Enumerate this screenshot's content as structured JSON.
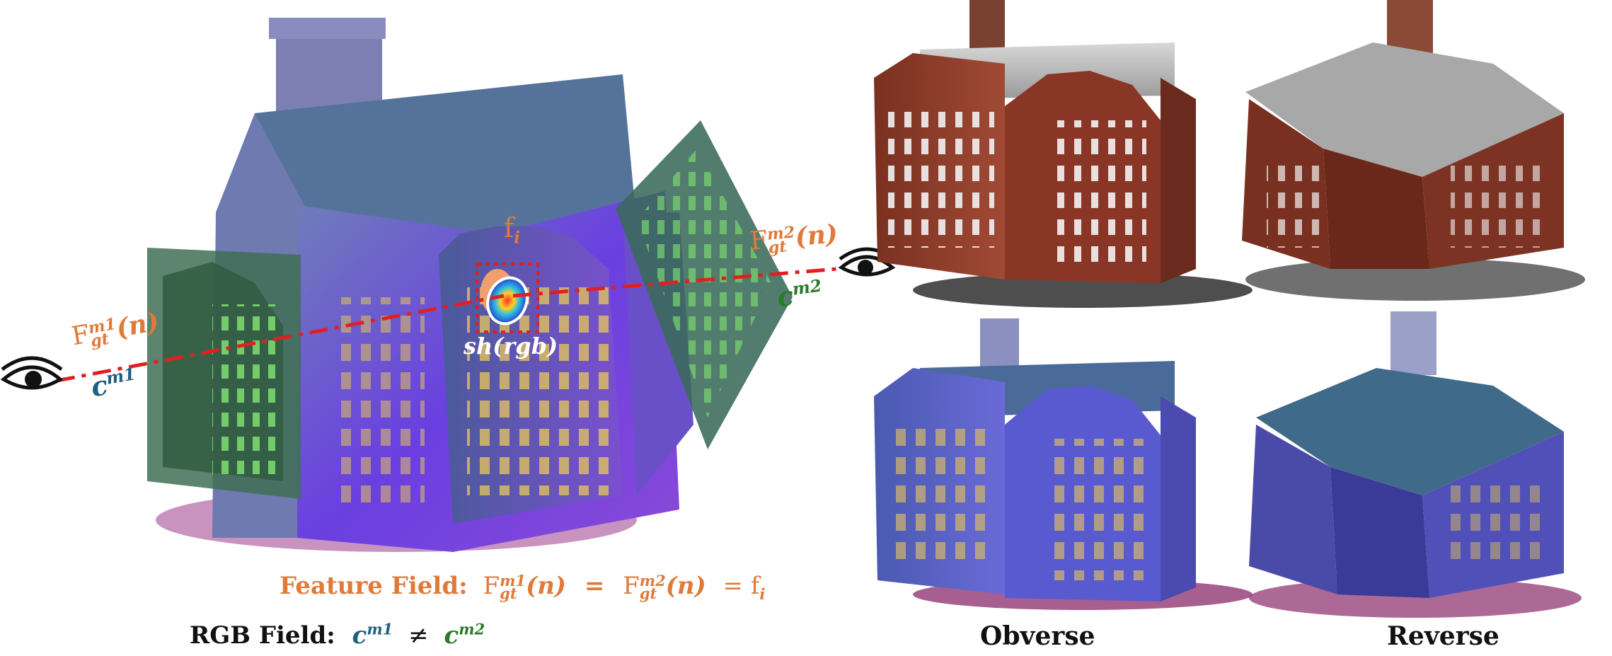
{
  "figure": {
    "left_panel": {
      "labels": {
        "f_i": "f",
        "f_i_sub": "i",
        "sh_rgb": "sh(rgb)",
        "F_gt_m1": "F",
        "F_gt_m1_sup": "m1",
        "F_gt_m1_sub": "gt",
        "F_gt_m1_arg": "(n)",
        "F_gt_m2": "F",
        "F_gt_m2_sup": "m2",
        "F_gt_m2_sub": "gt",
        "F_gt_m2_arg": "(n)",
        "c_m1": "c",
        "c_m1_sup": "m1",
        "c_m2": "c",
        "c_m2_sup": "m2"
      },
      "equations": {
        "feature_field_prefix": "Feature Field:",
        "feature_F1": "F",
        "feature_F1_sup": "m1",
        "feature_F1_sub": "gt",
        "feature_F1_arg": "(n)",
        "equals1": "=",
        "feature_F2": "F",
        "feature_F2_sup": "m2",
        "feature_F2_sub": "gt",
        "feature_F2_arg": "(n)",
        "equals2": "= f",
        "feature_fi_sub": "i",
        "rgb_field_prefix": "RGB Field:",
        "rgb_c1": "c",
        "rgb_c1_sup": "m1",
        "neq": "≠",
        "rgb_c2": "c",
        "rgb_c2_sup": "m2"
      }
    },
    "right_panel": {
      "captions": [
        "Obverse",
        "Reverse"
      ]
    },
    "colors": {
      "orange": "#e07a3a",
      "green": "#2a7a2a",
      "blue": "#1f5f7f",
      "ray": "#e02020",
      "brick": "#8a3a2a",
      "feature_purple": "#5a4ad0"
    }
  }
}
